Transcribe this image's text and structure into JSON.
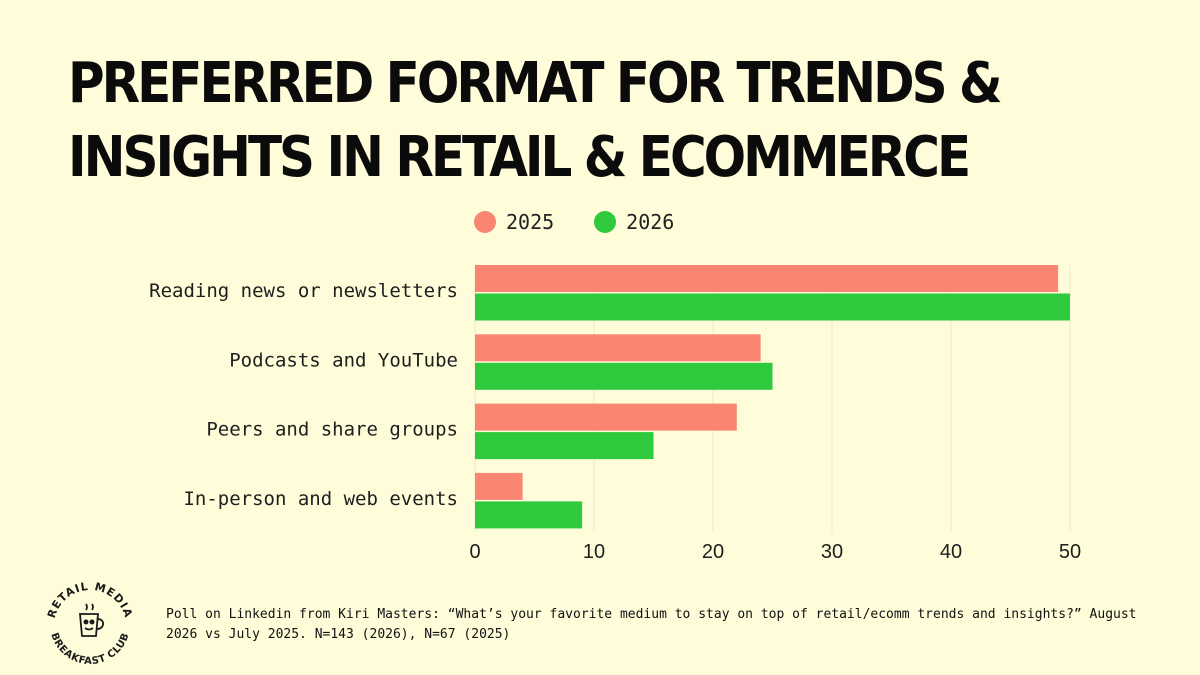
{
  "title": "PREFERRED FORMAT FOR TRENDS &\nINSIGHTS IN  RETAIL & ECOMMERCE",
  "footnote": "Poll on Linkedin from Kiri Masters:  “What’s your favorite medium to stay on top of retail/ecomm trends and insights?” August 2026 vs July 2025. N=143 (2026), N=67 (2025)",
  "logo": {
    "text_top": "RETAIL MEDIA",
    "text_bottom": "BREAKFAST CLUB",
    "icon": "coffee-mug-mascot-icon"
  },
  "colors": {
    "background": "#fefcd9",
    "series_2025": "#fa8671",
    "series_2026": "#2ec93c",
    "grid": "#ecead0"
  },
  "chart_data": {
    "type": "bar",
    "orientation": "horizontal",
    "categories": [
      "Reading news or newsletters",
      "Podcasts and YouTube",
      "Peers and share groups",
      "In-person and web events"
    ],
    "series": [
      {
        "name": "2025",
        "values": [
          49,
          24,
          22,
          4
        ]
      },
      {
        "name": "2026",
        "values": [
          50,
          25,
          15,
          9
        ]
      }
    ],
    "xlim": [
      0,
      50
    ],
    "xticks": [
      0,
      10,
      20,
      30,
      40,
      50
    ],
    "grid": true,
    "legend": "top"
  }
}
